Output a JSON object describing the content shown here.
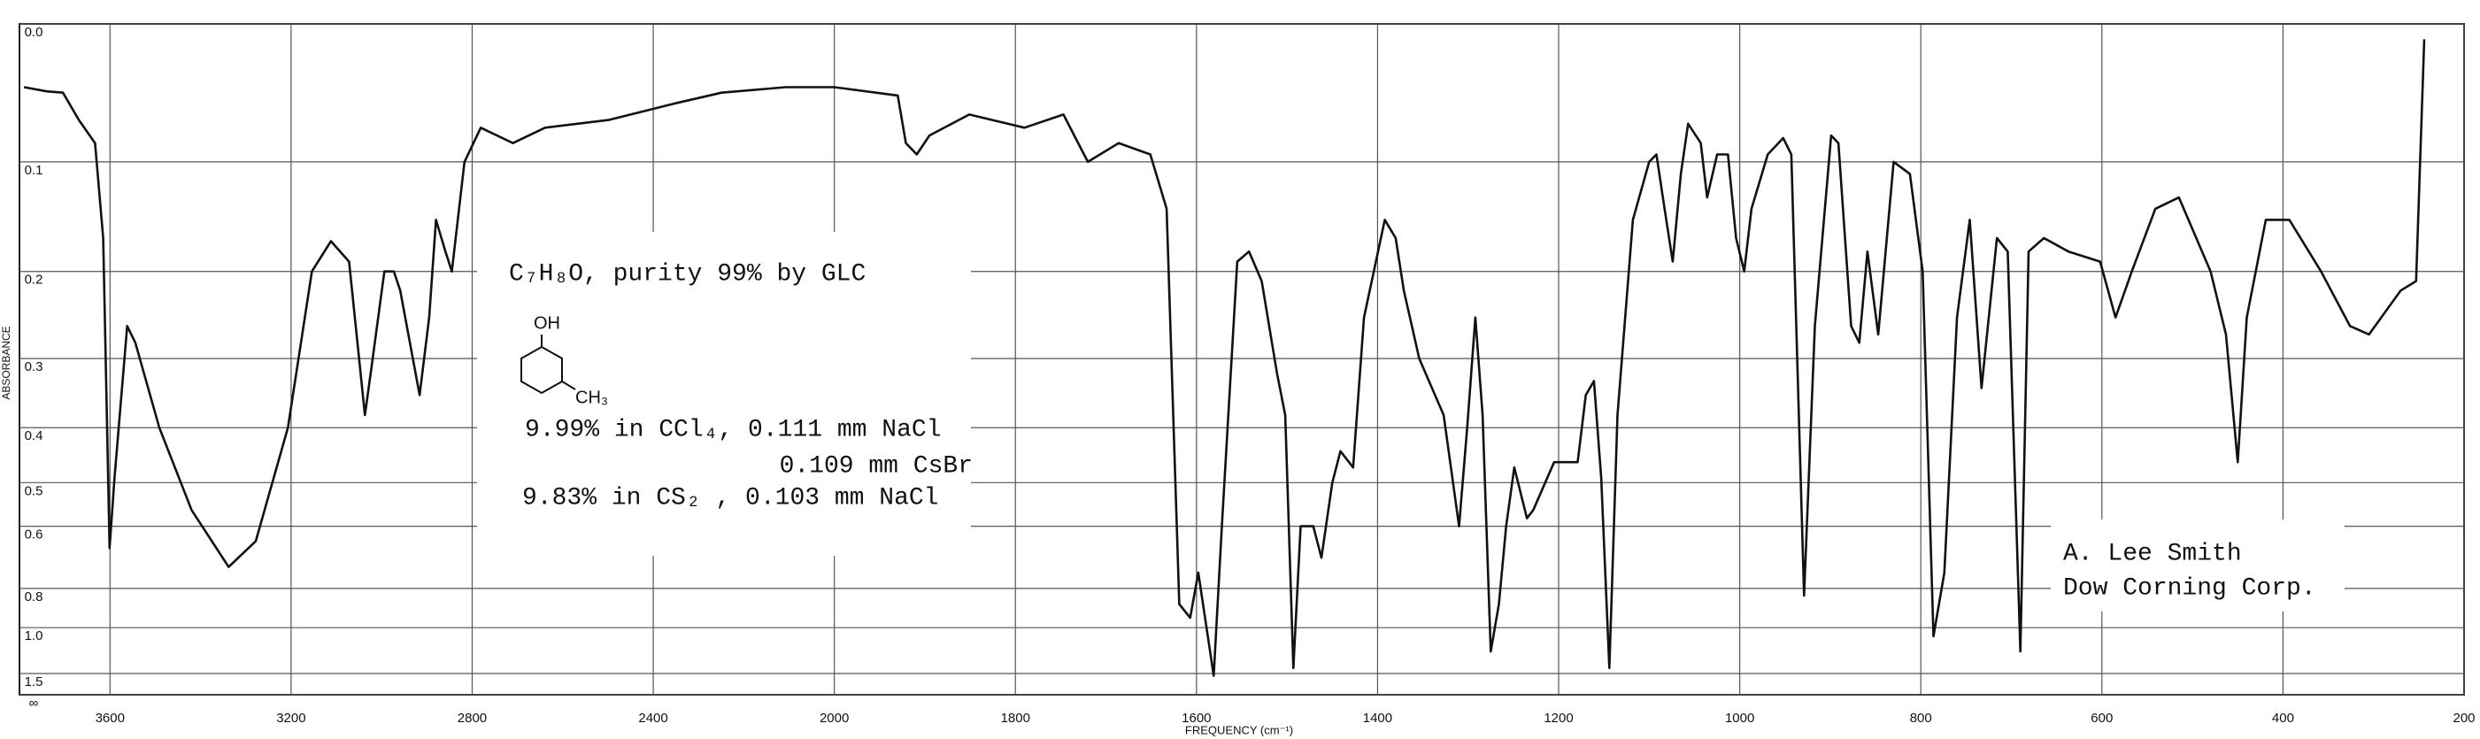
{
  "chart_data": {
    "type": "line",
    "xlabel": "FREQUENCY (cm⁻¹)",
    "ylabel": "ABSORBANCE",
    "xscale": "tick-spaced",
    "yscale": "absorbance",
    "xlim": [
      3800,
      200
    ],
    "xticks": [
      3600,
      3200,
      2800,
      2400,
      2000,
      1800,
      1600,
      1400,
      1200,
      1000,
      800,
      600,
      400,
      200
    ],
    "ylim": [
      0,
      "Infinity"
    ],
    "yticks": [
      {
        "value": 0,
        "label": "0.0"
      },
      0.1,
      0.2,
      0.3,
      0.4,
      0.5,
      0.6,
      0.8,
      {
        "value": 1,
        "label": "1.0"
      },
      1.5,
      {
        "value": "Infinity",
        "label": "∞"
      }
    ],
    "grid": true,
    "color": "#111111",
    "x": [
      3790,
      3740,
      3704,
      3669,
      3633,
      3615,
      3601,
      3590,
      3562,
      3544,
      3491,
      3420,
      3338,
      3278,
      3207,
      3154,
      3112,
      3072,
      3037,
      3022,
      2994,
      2973,
      2959,
      2916,
      2895,
      2880,
      2859,
      2845,
      2817,
      2781,
      2710,
      2639,
      2497,
      2355,
      2249,
      2107,
      2000,
      1930,
      1921,
      1909,
      1895,
      1851,
      1790,
      1747,
      1720,
      1686,
      1651,
      1633,
      1619,
      1607,
      1598,
      1581,
      1572,
      1555,
      1542,
      1528,
      1511,
      1502,
      1493,
      1485,
      1471,
      1462,
      1450,
      1441,
      1427,
      1415,
      1392,
      1380,
      1371,
      1354,
      1327,
      1310,
      1301,
      1292,
      1284,
      1275,
      1266,
      1258,
      1249,
      1235,
      1228,
      1205,
      1179,
      1170,
      1161,
      1153,
      1144,
      1135,
      1118,
      1100,
      1092,
      1083,
      1074,
      1065,
      1057,
      1043,
      1036,
      1025,
      1013,
      1004,
      995,
      987,
      969,
      952,
      943,
      929,
      917,
      899,
      891,
      877,
      868,
      859,
      847,
      830,
      812,
      798,
      786,
      774,
      760,
      746,
      733,
      716,
      704,
      690,
      681,
      664,
      637,
      602,
      585,
      567,
      541,
      515,
      480,
      463,
      450,
      440,
      419,
      393,
      358,
      326,
      305,
      270,
      253,
      244
    ],
    "values": [
      0.043,
      0.046,
      0.047,
      0.067,
      0.085,
      0.167,
      0.66,
      0.49,
      0.26,
      0.28,
      0.4,
      0.56,
      0.72,
      0.64,
      0.4,
      0.2,
      0.17,
      0.19,
      0.38,
      0.31,
      0.2,
      0.2,
      0.22,
      0.35,
      0.25,
      0.15,
      0.18,
      0.2,
      0.1,
      0.073,
      0.085,
      0.073,
      0.067,
      0.055,
      0.047,
      0.043,
      0.043,
      0.049,
      0.085,
      0.094,
      0.079,
      0.063,
      0.073,
      0.063,
      0.1,
      0.085,
      0.094,
      0.14,
      0.87,
      0.94,
      0.74,
      1.55,
      0.6,
      0.19,
      0.18,
      0.21,
      0.32,
      0.38,
      1.4,
      0.6,
      0.6,
      0.69,
      0.5,
      0.44,
      0.47,
      0.25,
      0.15,
      0.167,
      0.22,
      0.3,
      0.38,
      0.6,
      0.4,
      0.25,
      0.38,
      1.19,
      0.87,
      0.6,
      0.47,
      0.58,
      0.56,
      0.46,
      0.46,
      0.35,
      0.33,
      0.49,
      1.4,
      0.38,
      0.15,
      0.1,
      0.094,
      0.14,
      0.19,
      0.11,
      0.07,
      0.085,
      0.13,
      0.094,
      0.094,
      0.167,
      0.2,
      0.14,
      0.094,
      0.081,
      0.094,
      0.83,
      0.26,
      0.079,
      0.085,
      0.26,
      0.28,
      0.18,
      0.27,
      0.1,
      0.11,
      0.2,
      1.06,
      0.74,
      0.25,
      0.15,
      0.34,
      0.167,
      0.18,
      1.19,
      0.18,
      0.167,
      0.18,
      0.19,
      0.25,
      0.2,
      0.14,
      0.13,
      0.2,
      0.27,
      0.46,
      0.25,
      0.15,
      0.15,
      0.2,
      0.26,
      0.27,
      0.22,
      0.21,
      0.01
    ],
    "annotations": [
      "C₇H₈O, purity 99% by GLC",
      "OH",
      "CH₃",
      "9.99% in CCl₄, 0.111 mm NaCl",
      "0.109 mm CsBr",
      "9.83% in CS₂ , 0.103 mm NaCl",
      "A. Lee Smith",
      "Dow Corning Corp."
    ]
  }
}
